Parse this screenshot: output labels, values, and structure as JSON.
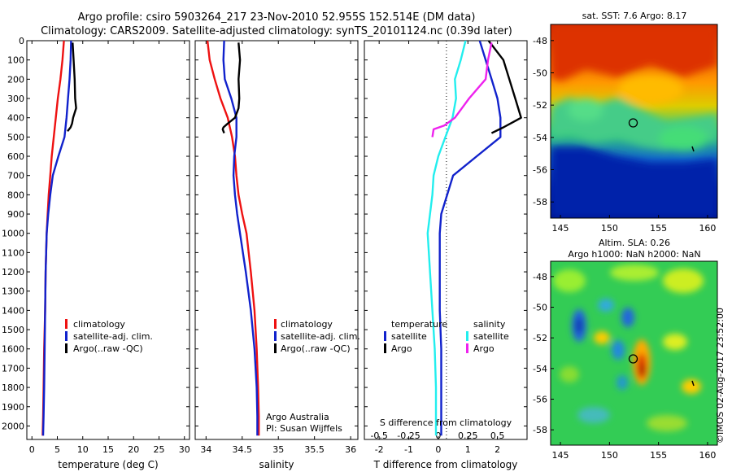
{
  "header": {
    "line1": "Argo profile: csiro 5903264_217 23-Nov-2010 52.955S 152.514E (DM data)",
    "line2": "Climatology: CARS2009. Satellite-adjusted climatology: synTS_20101124.nc (0.39d later)"
  },
  "colors": {
    "climatology": "#ee1111",
    "satellite": "#1122cc",
    "argo": "#000000",
    "s_satellite": "#22eeee",
    "s_argo": "#ee22ee"
  },
  "chart_data": [
    {
      "type": "line",
      "xlabel": "temperature (deg C)",
      "ylabel": "",
      "xlim": [
        -1,
        31
      ],
      "ylim": [
        2070,
        0
      ],
      "x_ticks": [
        0,
        5,
        10,
        15,
        20,
        25,
        30
      ],
      "y_ticks": [
        0,
        100,
        200,
        300,
        400,
        500,
        600,
        700,
        800,
        900,
        1000,
        1100,
        1200,
        1300,
        1400,
        1500,
        1600,
        1700,
        1800,
        1900,
        2000
      ],
      "legend": [
        "climatology",
        "satellite-adj. clim.",
        "Argo(..raw -QC)"
      ],
      "legend_position": "lower-center",
      "series": [
        {
          "name": "climatology",
          "color": "climatology",
          "x": [
            6.3,
            6.0,
            5.6,
            5.1,
            4.7,
            4.3,
            3.9,
            3.6,
            3.3,
            3.1,
            2.9,
            2.7,
            2.6,
            2.4,
            2.3,
            2.2,
            2.1
          ],
          "depth": [
            0,
            100,
            200,
            300,
            400,
            500,
            600,
            700,
            800,
            900,
            1000,
            1200,
            1400,
            1600,
            1800,
            1950,
            2050
          ]
        },
        {
          "name": "satellite-adj. clim.",
          "color": "satellite",
          "x": [
            7.7,
            7.6,
            7.4,
            7.1,
            6.8,
            6.4,
            5.2,
            4.1,
            3.6,
            3.2,
            2.9,
            2.7,
            2.6,
            2.5,
            2.4,
            2.3,
            2.2
          ],
          "depth": [
            0,
            100,
            200,
            300,
            400,
            500,
            600,
            700,
            800,
            900,
            1000,
            1200,
            1400,
            1600,
            1800,
            1950,
            2050
          ]
        },
        {
          "name": "Argo(..raw -QC)",
          "color": "argo",
          "x": [
            8.0,
            8.2,
            8.4,
            8.5,
            8.7,
            8.1,
            7.9,
            7.6,
            7.3,
            7.0
          ],
          "depth": [
            10,
            100,
            200,
            300,
            350,
            400,
            430,
            450,
            460,
            470
          ]
        }
      ]
    },
    {
      "type": "line",
      "xlabel": "salinity",
      "ylabel": "",
      "xlim": [
        33.85,
        36.1
      ],
      "ylim": [
        2070,
        0
      ],
      "x_ticks": [
        34,
        34.5,
        35,
        35.5,
        36
      ],
      "legend": [
        "climatology",
        "satellite-adj. clim.",
        "Argo(..raw -QC)"
      ],
      "legend_position": "lower-right",
      "annotations": [
        "Argo Australia",
        "PI: Susan Wijffels"
      ],
      "series": [
        {
          "name": "climatology",
          "color": "climatology",
          "x": [
            34.02,
            34.05,
            34.12,
            34.2,
            34.3,
            34.36,
            34.4,
            34.42,
            34.45,
            34.5,
            34.56,
            34.62,
            34.67,
            34.7,
            34.72,
            34.73,
            34.73
          ],
          "depth": [
            0,
            100,
            200,
            300,
            400,
            500,
            600,
            700,
            800,
            900,
            1000,
            1200,
            1400,
            1600,
            1800,
            1950,
            2050
          ]
        },
        {
          "name": "satellite-adj. clim.",
          "color": "satellite",
          "x": [
            34.25,
            34.24,
            34.26,
            34.35,
            34.42,
            34.42,
            34.39,
            34.38,
            34.4,
            34.43,
            34.47,
            34.55,
            34.62,
            34.67,
            34.7,
            34.71,
            34.71
          ],
          "depth": [
            0,
            100,
            200,
            300,
            400,
            500,
            600,
            700,
            800,
            900,
            1000,
            1200,
            1400,
            1600,
            1800,
            1950,
            2050
          ]
        },
        {
          "name": "Argo(..raw -QC)",
          "color": "argo",
          "x": [
            34.45,
            34.47,
            34.45,
            34.46,
            34.45,
            34.4,
            34.3,
            34.24,
            34.23,
            34.25
          ],
          "depth": [
            10,
            100,
            200,
            300,
            350,
            400,
            430,
            450,
            460,
            480
          ]
        }
      ]
    },
    {
      "type": "line",
      "xlabel": "T difference from climatology",
      "top_axis_label": "S difference from climatology",
      "ylabel": "",
      "xlim": [
        -2.5,
        3.0
      ],
      "ylim": [
        2070,
        0
      ],
      "x_ticks": [
        -2,
        -1,
        0,
        1,
        2
      ],
      "x_tick_labels": [
        "-2",
        "-1",
        "0",
        "1",
        "2"
      ],
      "s_ticks": [
        -0.5,
        -0.25,
        0,
        0.25,
        0.5
      ],
      "s_tick_labels": [
        "-0.5",
        "-0.25",
        "0",
        "0.25",
        "0.5"
      ],
      "legend_titles": [
        "temperature",
        "salinity"
      ],
      "legend": [
        "satellite",
        "Argo",
        "satellite",
        "Argo"
      ],
      "legend_position": "lower-center",
      "series": [
        {
          "name": "satellite",
          "variable": "T",
          "color": "satellite",
          "x": [
            1.4,
            1.6,
            1.8,
            2.0,
            2.1,
            2.1,
            1.3,
            0.5,
            0.3,
            0.1,
            0.05,
            0.05,
            0.05,
            0.1,
            0.1,
            0.1,
            0.1
          ],
          "depth": [
            0,
            100,
            200,
            300,
            400,
            500,
            600,
            700,
            800,
            900,
            1000,
            1200,
            1400,
            1600,
            1800,
            1950,
            2050
          ]
        },
        {
          "name": "Argo",
          "variable": "T",
          "color": "argo",
          "x": [
            1.7,
            2.2,
            2.4,
            2.6,
            2.8,
            2.2,
            1.8
          ],
          "depth": [
            0,
            100,
            200,
            300,
            400,
            450,
            480
          ]
        },
        {
          "name": "satellite",
          "variable": "S",
          "color": "s_satellite",
          "x": [
            0.23,
            0.19,
            0.14,
            0.15,
            0.12,
            0.06,
            0.0,
            -0.04,
            -0.05,
            -0.07,
            -0.09,
            -0.07,
            -0.05,
            -0.03,
            -0.02,
            -0.02,
            -0.02
          ],
          "depth": [
            0,
            100,
            200,
            300,
            400,
            500,
            600,
            700,
            800,
            900,
            1000,
            1200,
            1400,
            1600,
            1800,
            1950,
            2050
          ]
        },
        {
          "name": "Argo",
          "variable": "S",
          "color": "s_argo",
          "x": [
            0.45,
            0.42,
            0.4,
            0.26,
            0.14,
            0.05,
            -0.04,
            -0.05
          ],
          "depth": [
            10,
            100,
            200,
            300,
            400,
            440,
            460,
            500
          ]
        }
      ]
    },
    {
      "type": "heatmap",
      "title": "sat. SST: 7.6 Argo: 8.17",
      "xlim": [
        144,
        161
      ],
      "ylim": [
        -59,
        -47
      ],
      "x_ticks": [
        145,
        150,
        155,
        160
      ],
      "y_ticks": [
        -48,
        -50,
        -52,
        -54,
        -56,
        -58
      ],
      "marker": {
        "lon": 152.5,
        "lat": -53.0
      }
    },
    {
      "type": "heatmap",
      "title": "Altim. SLA: 0.26",
      "subtitle": "Argo h1000: NaN h2000: NaN",
      "xlim": [
        144,
        161
      ],
      "ylim": [
        -59,
        -47
      ],
      "x_ticks": [
        145,
        150,
        155,
        160
      ],
      "y_ticks": [
        -48,
        -50,
        -52,
        -54,
        -56,
        -58
      ],
      "marker": {
        "lon": 152.5,
        "lat": -53.0
      }
    }
  ],
  "watermark": "©IMOS 02-Aug-2017 23:52:00"
}
